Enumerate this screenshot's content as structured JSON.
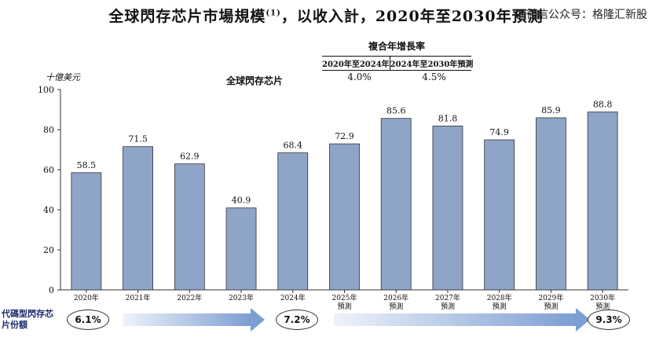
{
  "title": {
    "main": "全球閃存芯片市場規模",
    "sup": "(1)",
    "rest": "，以收入計，2020年至2030年預測"
  },
  "watermark": "@微信公众号：格隆汇新股",
  "cagr": {
    "title": "複合年增長率",
    "periods": [
      "2020年至2024年",
      "2024年至2030年預測"
    ],
    "values": [
      "4.0%",
      "4.5%"
    ]
  },
  "legend_label": "全球閃存芯片",
  "share": {
    "label": "代碼型閃存芯片份額",
    "values": [
      "6.1%",
      "7.2%",
      "9.3%"
    ]
  },
  "chart_data": {
    "type": "bar",
    "ylabel": "十億美元",
    "ylim": [
      0,
      100
    ],
    "yticks": [
      0,
      20,
      40,
      60,
      80,
      100
    ],
    "categories": [
      "2020年",
      "2021年",
      "2022年",
      "2023年",
      "2024年",
      "2025年\n預測",
      "2026年\n預測",
      "2027年\n預測",
      "2028年\n預測",
      "2029年\n預測",
      "2030年\n預測"
    ],
    "values": [
      58.5,
      71.5,
      62.9,
      40.9,
      68.4,
      72.9,
      85.6,
      81.8,
      74.9,
      85.9,
      88.8
    ],
    "value_labels": [
      "58.5",
      "71.5",
      "62.9",
      "40.9",
      "68.4",
      "72.9",
      "85.6",
      "81.8",
      "74.9",
      "85.9",
      "88.8"
    ],
    "bar_color": "#8ea5c8",
    "bar_edge_color": "#333333"
  }
}
